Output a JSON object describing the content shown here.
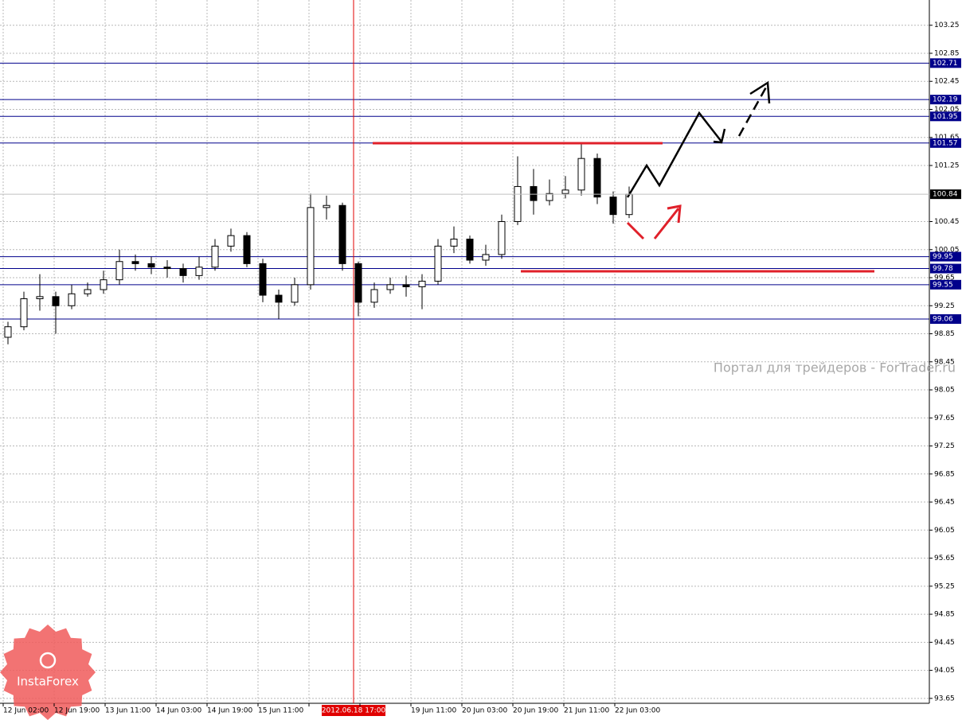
{
  "chart_data": {
    "type": "candlestick",
    "ylim": [
      93.58,
      103.61
    ],
    "yticks": [
      103.25,
      102.85,
      102.45,
      102.05,
      101.65,
      101.25,
      100.45,
      100.05,
      99.65,
      99.25,
      98.85,
      98.45,
      98.05,
      97.65,
      97.25,
      96.85,
      96.45,
      96.05,
      95.65,
      95.25,
      94.85,
      94.45,
      94.05,
      93.65
    ],
    "categories": [
      "12 Jun 02:00",
      "12 Jun 19:00",
      "13 Jun 11:00",
      "14 Jun 03:00",
      "14 Jun 19:00",
      "15 Jun 11:00",
      null,
      null,
      "19 Jun 11:00",
      "20 Jun 03:00",
      "20 Jun 19:00",
      "21 Jun 11:00",
      "22 Jun 03:00"
    ],
    "series": [
      {
        "color": "#000000",
        "open": [
          98.8,
          98.95,
          99.35,
          99.38,
          99.25,
          99.42,
          99.48,
          99.62,
          99.88,
          99.85,
          99.8,
          99.78,
          99.68,
          99.8,
          100.1,
          100.25,
          99.85,
          99.4,
          99.3,
          99.55,
          100.65,
          100.68,
          99.85,
          99.3,
          99.48,
          99.55,
          99.52,
          99.6,
          100.1,
          100.2,
          99.9,
          99.98,
          100.45,
          100.95,
          100.75,
          100.85,
          100.9,
          101.35,
          100.8,
          100.55
        ],
        "high": [
          99.02,
          99.45,
          99.7,
          99.45,
          99.55,
          99.58,
          99.75,
          100.05,
          99.98,
          99.95,
          99.9,
          99.85,
          99.95,
          100.2,
          100.35,
          100.3,
          99.92,
          99.48,
          99.65,
          100.85,
          100.82,
          100.72,
          99.88,
          99.58,
          99.65,
          99.68,
          99.7,
          100.2,
          100.38,
          100.25,
          100.12,
          100.55,
          101.38,
          101.2,
          101.05,
          101.1,
          101.57,
          101.42,
          100.88,
          100.95
        ],
        "low": [
          98.7,
          98.9,
          99.18,
          98.85,
          99.2,
          99.38,
          99.42,
          99.55,
          99.75,
          99.7,
          99.65,
          99.58,
          99.62,
          99.75,
          100.02,
          99.8,
          99.3,
          99.06,
          99.25,
          99.48,
          100.48,
          99.75,
          99.1,
          99.22,
          99.42,
          99.38,
          99.2,
          99.55,
          100.0,
          99.85,
          99.82,
          99.92,
          100.4,
          100.55,
          100.68,
          100.78,
          100.82,
          100.7,
          100.42,
          100.5
        ],
        "close": [
          98.95,
          99.35,
          99.38,
          99.25,
          99.42,
          99.48,
          99.62,
          99.88,
          99.85,
          99.8,
          99.78,
          99.68,
          99.8,
          100.1,
          100.25,
          99.85,
          99.4,
          99.3,
          99.55,
          100.65,
          100.68,
          99.85,
          99.3,
          99.48,
          99.55,
          99.52,
          99.6,
          100.1,
          100.2,
          99.9,
          99.98,
          100.45,
          100.95,
          100.75,
          100.85,
          100.9,
          101.35,
          100.8,
          100.55,
          100.84
        ]
      }
    ],
    "levels": [
      102.71,
      102.19,
      101.95,
      101.57,
      99.95,
      99.78,
      99.55,
      99.06
    ],
    "level_color": "#00008b",
    "current_price": 100.84,
    "crosshair_label": "2012.06.18 17:00",
    "watermark": "Портал для трейдеров - ForTrader.ru",
    "logo": "InstaForex",
    "grid": true
  }
}
